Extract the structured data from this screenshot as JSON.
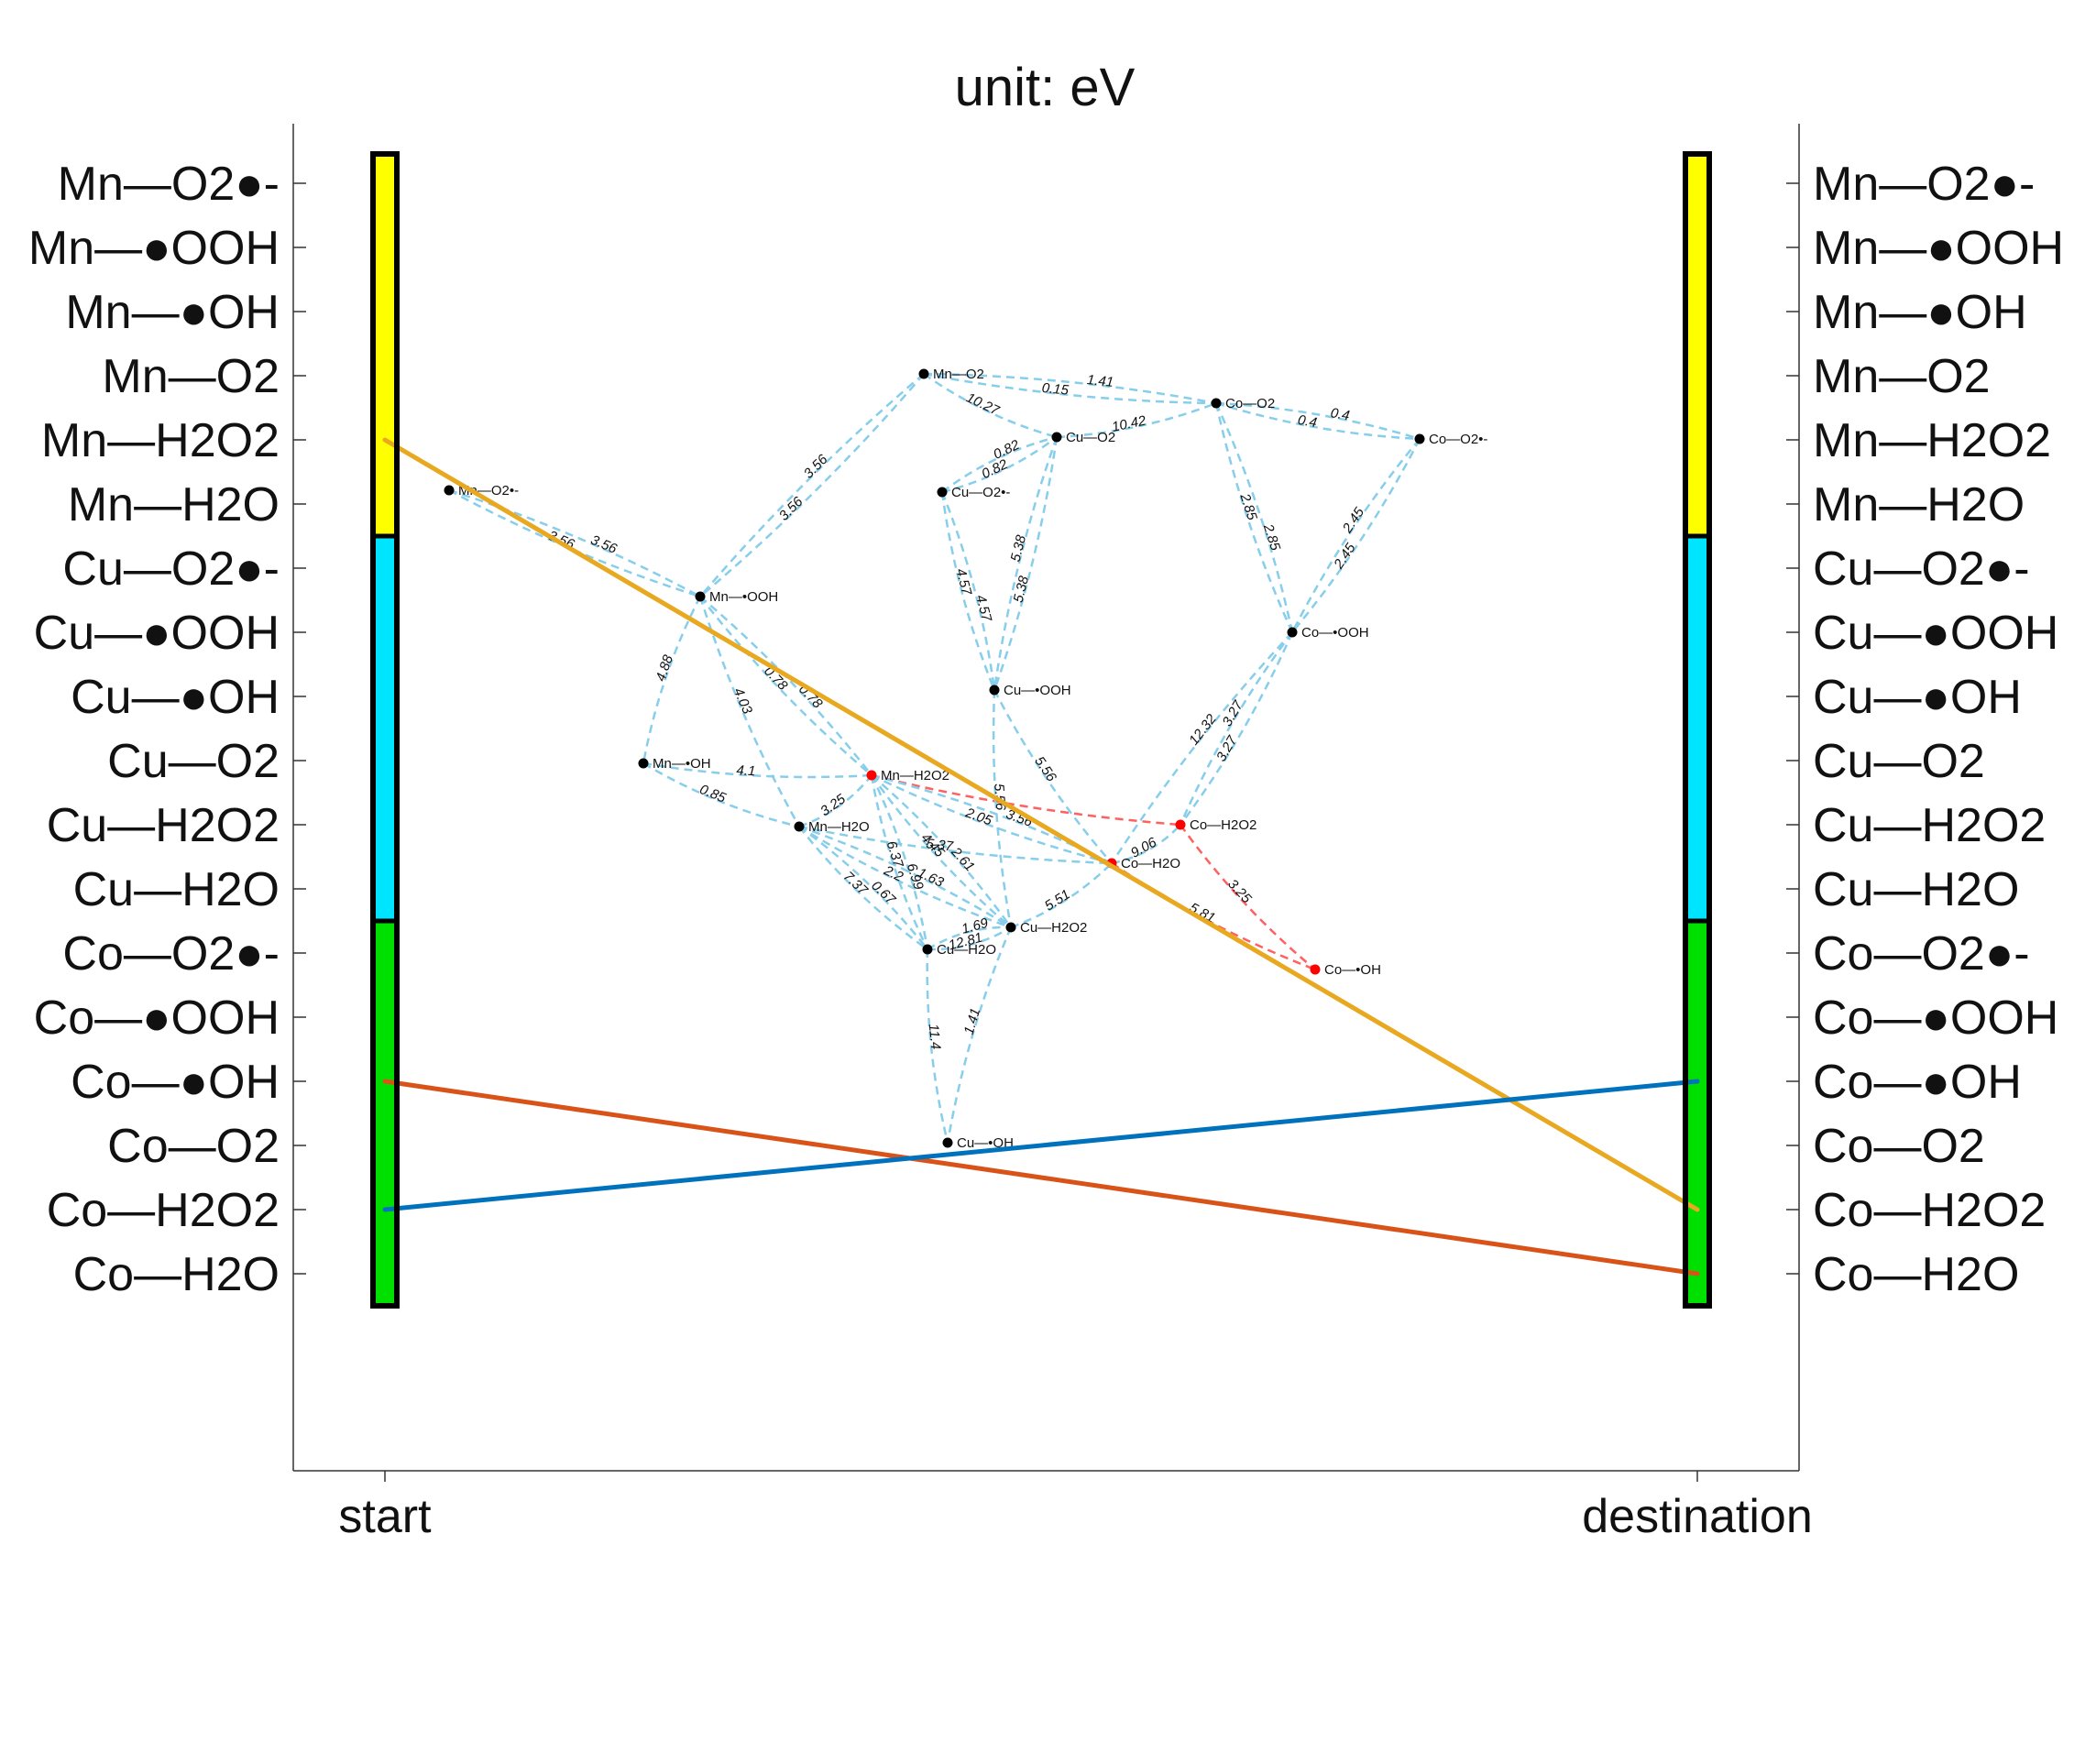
{
  "title": "unit: eV",
  "x_axis": {
    "labels": [
      "start",
      "destination"
    ]
  },
  "y_axis": {
    "left_labels": [
      "Mn—O2●-",
      "Mn—●OOH",
      "Mn—●OH",
      "Mn—O2",
      "Mn—H2O2",
      "Mn—H2O",
      "Cu—O2●-",
      "Cu—●OOH",
      "Cu—●OH",
      "Cu—O2",
      "Cu—H2O2",
      "Cu—H2O",
      "Co—O2●-",
      "Co—●OOH",
      "Co—●OH",
      "Co—O2",
      "Co—H2O2",
      "Co—H2O"
    ],
    "right_labels": [
      "Mn—O2●-",
      "Mn—●OOH",
      "Mn—●OH",
      "Mn—O2",
      "Mn—H2O2",
      "Mn—H2O",
      "Cu—O2●-",
      "Cu—●OOH",
      "Cu—●OH",
      "Cu—O2",
      "Cu—H2O2",
      "Cu—H2O",
      "Co—O2●-",
      "Co—●OOH",
      "Co—●OH",
      "Co—O2",
      "Co—H2O2",
      "Co—H2O"
    ]
  },
  "colors": {
    "group_mn": "#ffff00",
    "group_cu": "#00e5ff",
    "group_co": "#00e000",
    "edge": "#87ceeb",
    "path_edge": "#ff6060",
    "path_node": "#ff0000",
    "line_orange": "#e8a820",
    "line_red": "#d95319",
    "line_blue": "#0072bd"
  },
  "groups": [
    {
      "name": "Mn",
      "color_key": "group_mn",
      "from": 0,
      "to": 5
    },
    {
      "name": "Cu",
      "color_key": "group_cu",
      "from": 6,
      "to": 11
    },
    {
      "name": "Co",
      "color_key": "group_co",
      "from": 12,
      "to": 17
    }
  ],
  "mapping_lines": [
    {
      "from": "Mn—H2O2",
      "to": "Co—H2O2",
      "color_key": "line_orange"
    },
    {
      "from": "Co—●OH",
      "to": "Co—H2O",
      "color_key": "line_red"
    },
    {
      "from": "Co—H2O2",
      "to": "Co—●OH",
      "color_key": "line_blue"
    }
  ],
  "nodes": [
    {
      "id": "Mn—O2",
      "label": "Mn—O2",
      "on_path": false
    },
    {
      "id": "Co—O2",
      "label": "Co—O2",
      "on_path": false
    },
    {
      "id": "Cu—O2",
      "label": "Cu—O2",
      "on_path": false
    },
    {
      "id": "Co—O2•-",
      "label": "Co—O2•-",
      "on_path": false
    },
    {
      "id": "Mn—O2•-",
      "label": "Mn—O2•-",
      "on_path": false
    },
    {
      "id": "Cu—O2•-",
      "label": "Cu—O2•-",
      "on_path": false
    },
    {
      "id": "Mn—•OOH",
      "label": "Mn—•OOH",
      "on_path": false
    },
    {
      "id": "Co—•OOH",
      "label": "Co—•OOH",
      "on_path": false
    },
    {
      "id": "Cu—•OOH",
      "label": "Cu—•OOH",
      "on_path": false
    },
    {
      "id": "Mn—•OH",
      "label": "Mn—•OH",
      "on_path": false
    },
    {
      "id": "Mn—H2O2",
      "label": "Mn—H2O2",
      "on_path": true
    },
    {
      "id": "Co—H2O2",
      "label": "Co—H2O2",
      "on_path": true
    },
    {
      "id": "Mn—H2O",
      "label": "Mn—H2O",
      "on_path": false
    },
    {
      "id": "Co—H2O",
      "label": "Co—H2O",
      "on_path": true
    },
    {
      "id": "Cu—H2O2",
      "label": "Cu—H2O2",
      "on_path": false
    },
    {
      "id": "Cu—H2O",
      "label": "Cu—H2O",
      "on_path": false
    },
    {
      "id": "Co—•OH",
      "label": "Co—•OH",
      "on_path": true
    },
    {
      "id": "Cu—•OH",
      "label": "Cu—•OH",
      "on_path": false
    }
  ],
  "edges": [
    {
      "from": "Mn—O2",
      "to": "Co—O2",
      "weight": "0.15"
    },
    {
      "from": "Mn—O2",
      "to": "Co—O2",
      "weight": "1.41"
    },
    {
      "from": "Mn—O2",
      "to": "Cu—O2",
      "weight": "10.27"
    },
    {
      "from": "Cu—O2",
      "to": "Co—O2",
      "weight": "10.42"
    },
    {
      "from": "Co—O2",
      "to": "Co—O2•-",
      "weight": "0.4"
    },
    {
      "from": "Co—O2",
      "to": "Co—O2•-",
      "weight": "0.4"
    },
    {
      "from": "Mn—O2",
      "to": "Mn—•OOH",
      "weight": "3.56"
    },
    {
      "from": "Mn—O2",
      "to": "Mn—•OOH",
      "weight": "3.56"
    },
    {
      "from": "Mn—O2•-",
      "to": "Mn—•OOH",
      "weight": "3.56"
    },
    {
      "from": "Mn—O2•-",
      "to": "Mn—•OOH",
      "weight": "3.56"
    },
    {
      "from": "Cu—O2•-",
      "to": "Cu—O2",
      "weight": "0.82"
    },
    {
      "from": "Cu—O2•-",
      "to": "Cu—O2",
      "weight": "0.82"
    },
    {
      "from": "Co—O2",
      "to": "Co—•OOH",
      "weight": "2.85"
    },
    {
      "from": "Co—O2",
      "to": "Co—•OOH",
      "weight": "2.85"
    },
    {
      "from": "Co—O2•-",
      "to": "Co—•OOH",
      "weight": "2.45"
    },
    {
      "from": "Co—O2•-",
      "to": "Co—•OOH",
      "weight": "2.45"
    },
    {
      "from": "Cu—O2•-",
      "to": "Cu—•OOH",
      "weight": "4.57"
    },
    {
      "from": "Cu—O2•-",
      "to": "Cu—•OOH",
      "weight": "4.57"
    },
    {
      "from": "Cu—O2",
      "to": "Cu—•OOH",
      "weight": "5.38"
    },
    {
      "from": "Cu—O2",
      "to": "Cu—•OOH",
      "weight": "5.38"
    },
    {
      "from": "Mn—•OOH",
      "to": "Mn—•OH",
      "weight": "4.88"
    },
    {
      "from": "Mn—•OOH",
      "to": "Mn—H2O2",
      "weight": "0.78"
    },
    {
      "from": "Mn—•OOH",
      "to": "Mn—H2O2",
      "weight": "0.78"
    },
    {
      "from": "Mn—•OOH",
      "to": "Mn—H2O",
      "weight": "4.03"
    },
    {
      "from": "Co—•OOH",
      "to": "Co—H2O2",
      "weight": "3.27"
    },
    {
      "from": "Co—•OOH",
      "to": "Co—H2O2",
      "weight": "3.27"
    },
    {
      "from": "Co—•OOH",
      "to": "Co—H2O",
      "weight": "12.32"
    },
    {
      "from": "Mn—•OH",
      "to": "Mn—H2O2",
      "weight": "4.1"
    },
    {
      "from": "Mn—•OH",
      "to": "Mn—H2O",
      "weight": "0.85"
    },
    {
      "from": "Mn—H2O",
      "to": "Mn—H2O2",
      "weight": "3.25"
    },
    {
      "from": "Mn—H2O2",
      "to": "Co—H2O2",
      "weight": "",
      "on_path": true
    },
    {
      "from": "Mn—H2O2",
      "to": "Co—H2O",
      "weight": "2.05"
    },
    {
      "from": "Mn—H2O2",
      "to": "Co—H2O",
      "weight": "3.56"
    },
    {
      "from": "Cu—•OOH",
      "to": "Co—H2O",
      "weight": "5.56"
    },
    {
      "from": "Cu—•OOH",
      "to": "Cu—H2O2",
      "weight": "5.56"
    },
    {
      "from": "Co—H2O",
      "to": "Co—H2O2",
      "weight": "9.06"
    },
    {
      "from": "Co—H2O2",
      "to": "Co—•OH",
      "weight": "3.25",
      "on_path": true
    },
    {
      "from": "Co—H2O",
      "to": "Co—•OH",
      "weight": "5.81",
      "on_path": true
    },
    {
      "from": "Mn—H2O",
      "to": "Co—H2O",
      "weight": "5.37"
    },
    {
      "from": "Cu—H2O2",
      "to": "Co—H2O",
      "weight": "5.51"
    },
    {
      "from": "Mn—H2O",
      "to": "Cu—H2O",
      "weight": "7.37"
    },
    {
      "from": "Mn—H2O",
      "to": "Cu—H2O",
      "weight": "0.67"
    },
    {
      "from": "Mn—H2O",
      "to": "Cu—H2O2",
      "weight": "2.2"
    },
    {
      "from": "Mn—H2O",
      "to": "Cu—H2O2",
      "weight": "1.63"
    },
    {
      "from": "Mn—H2O2",
      "to": "Cu—H2O",
      "weight": "6.37"
    },
    {
      "from": "Mn—H2O2",
      "to": "Cu—H2O",
      "weight": "6.99"
    },
    {
      "from": "Mn—H2O2",
      "to": "Cu—H2O2",
      "weight": "4.45"
    },
    {
      "from": "Mn—H2O2",
      "to": "Cu—H2O2",
      "weight": "2.61"
    },
    {
      "from": "Cu—H2O",
      "to": "Cu—H2O2",
      "weight": "12.81"
    },
    {
      "from": "Cu—H2O",
      "to": "Cu—H2O2",
      "weight": "1.69"
    },
    {
      "from": "Cu—H2O",
      "to": "Cu—•OH",
      "weight": "11.4"
    },
    {
      "from": "Cu—H2O2",
      "to": "Cu—•OH",
      "weight": "1.41"
    }
  ]
}
